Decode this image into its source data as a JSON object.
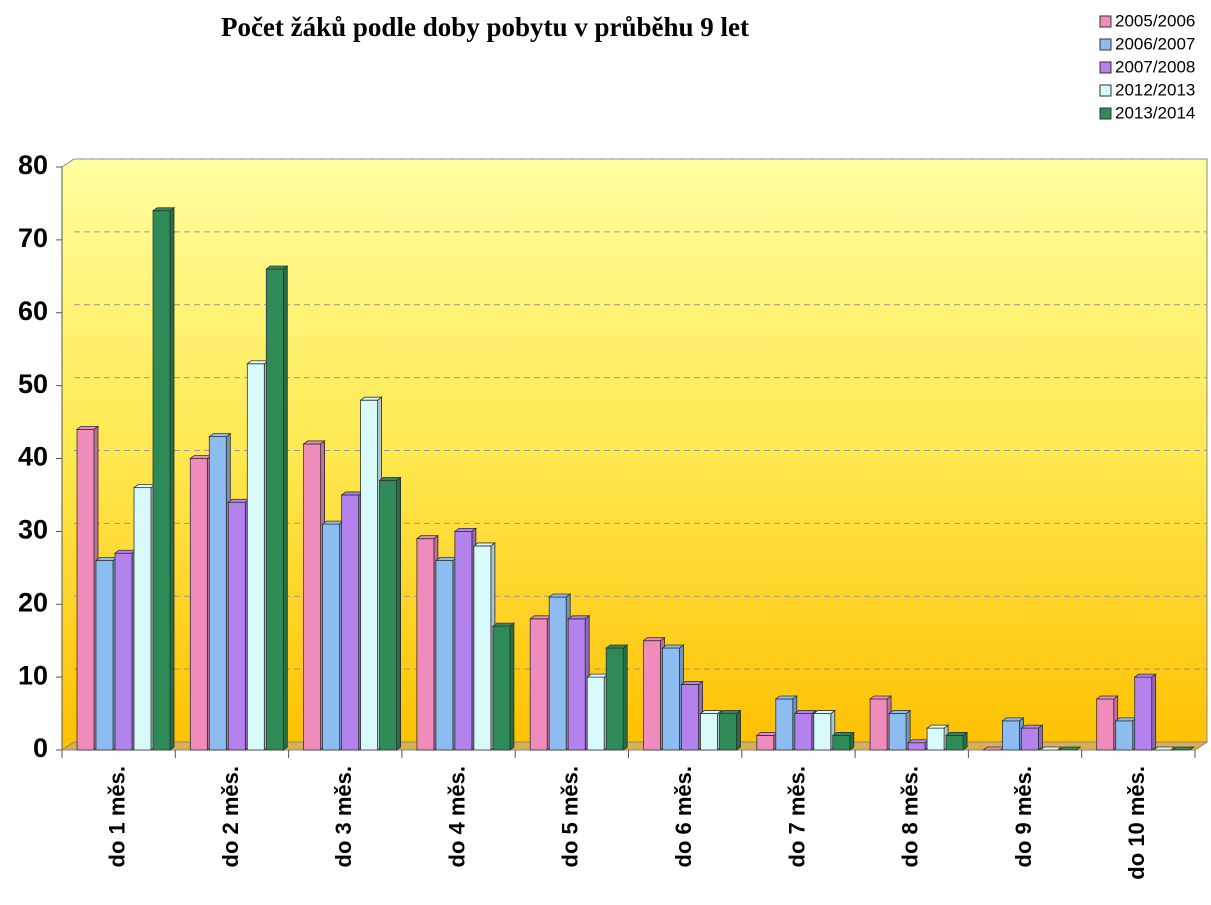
{
  "chart_data": {
    "type": "bar",
    "title": "Počet žáků podle doby pobytu v průběhu 9 let",
    "categories": [
      "do 1 měs.",
      "do 2 měs.",
      "do 3 měs.",
      "do 4 měs.",
      "do 5 měs.",
      "do 6 měs.",
      "do 7 měs.",
      "do 8 měs.",
      "do 9 měs.",
      "do 10 měs."
    ],
    "series": [
      {
        "name": "2005/2006",
        "color": "#f08cbc",
        "values": [
          44,
          40,
          42,
          29,
          18,
          15,
          2,
          7,
          0,
          7
        ]
      },
      {
        "name": "2006/2007",
        "color": "#8cbcf0",
        "values": [
          26,
          43,
          31,
          26,
          21,
          14,
          7,
          5,
          4,
          4
        ]
      },
      {
        "name": "2007/2008",
        "color": "#b482ec",
        "values": [
          27,
          34,
          35,
          30,
          18,
          9,
          5,
          1,
          3,
          10
        ]
      },
      {
        "name": "2012/2013",
        "color": "#d8fafa",
        "values": [
          36,
          53,
          48,
          28,
          10,
          5,
          5,
          3,
          0,
          0
        ]
      },
      {
        "name": "2013/2014",
        "color": "#2e8b57",
        "values": [
          74,
          66,
          37,
          17,
          14,
          5,
          2,
          2,
          0,
          0
        ]
      }
    ],
    "ylim": [
      0,
      80
    ],
    "yticks": [
      0,
      10,
      20,
      30,
      40,
      50,
      60,
      70,
      80
    ],
    "grid": true,
    "legend": "top-right"
  }
}
